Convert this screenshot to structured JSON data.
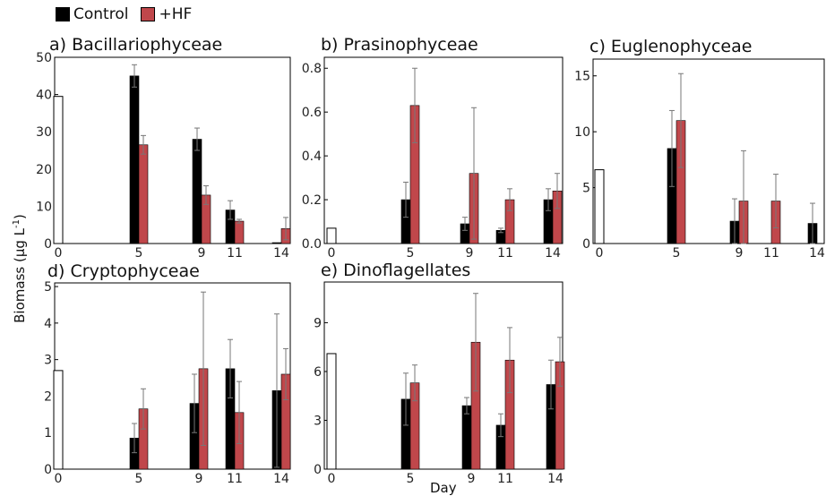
{
  "legend": [
    {
      "label": "Control",
      "color": "#000000"
    },
    {
      "label": "+HF",
      "color": "#c0474b"
    }
  ],
  "ylabel_text": "Biomass (µg L",
  "ylabel_sup": "-1",
  "ylabel_close": ")",
  "xlabel": "Day",
  "chart_data": [
    {
      "type": "bar",
      "title": "a) Bacillariophyceae",
      "categories": [
        "0",
        "5",
        "9",
        "11",
        "14"
      ],
      "ylim": [
        0,
        50
      ],
      "yticks": [
        0,
        10,
        20,
        30,
        40,
        50
      ],
      "initial": {
        "value": 39.5,
        "error": null
      },
      "series": [
        {
          "name": "Control",
          "values": [
            null,
            45,
            28,
            9,
            0
          ],
          "errors": [
            null,
            3,
            3,
            2.5,
            0
          ]
        },
        {
          "name": "+HF",
          "values": [
            null,
            26.5,
            13,
            6,
            4
          ],
          "errors": [
            null,
            2.5,
            2.5,
            0.5,
            3
          ]
        }
      ]
    },
    {
      "type": "bar",
      "title": "b) Prasinophyceae",
      "categories": [
        "0",
        "5",
        "9",
        "11",
        "14"
      ],
      "ylim": [
        0,
        0.85
      ],
      "yticks": [
        0,
        0.2,
        0.4,
        0.6,
        0.8
      ],
      "ytick_labels": [
        "0.0",
        "0.2",
        "0.4",
        "0.6",
        "0.8"
      ],
      "initial": {
        "value": 0.07,
        "error": null
      },
      "series": [
        {
          "name": "Control",
          "values": [
            null,
            0.2,
            0.09,
            0.06,
            0.2
          ],
          "errors": [
            null,
            0.08,
            0.03,
            0.01,
            0.05
          ]
        },
        {
          "name": "+HF",
          "values": [
            null,
            0.63,
            0.32,
            0.2,
            0.24
          ],
          "errors": [
            null,
            0.17,
            0.3,
            0.05,
            0.08
          ]
        }
      ]
    },
    {
      "type": "bar",
      "title": "c) Euglenophyceae",
      "categories": [
        "0",
        "5",
        "9",
        "11",
        "14"
      ],
      "ylim": [
        0,
        16.5
      ],
      "yticks": [
        0,
        5,
        10,
        15
      ],
      "initial": {
        "value": 6.6,
        "error": null
      },
      "series": [
        {
          "name": "Control",
          "values": [
            null,
            8.5,
            2,
            null,
            1.8
          ],
          "errors": [
            null,
            3.4,
            2,
            null,
            1.8
          ]
        },
        {
          "name": "+HF",
          "values": [
            null,
            11,
            3.8,
            3.8,
            null
          ],
          "errors": [
            null,
            4.2,
            4.5,
            2.4,
            null
          ]
        }
      ]
    },
    {
      "type": "bar",
      "title": "d) Cryptophyceae",
      "categories": [
        "0",
        "5",
        "9",
        "11",
        "14"
      ],
      "ylim": [
        0,
        5.1
      ],
      "yticks": [
        0,
        1,
        2,
        3,
        4,
        5
      ],
      "initial": {
        "value": 2.7,
        "error": null
      },
      "series": [
        {
          "name": "Control",
          "values": [
            null,
            0.85,
            1.8,
            2.75,
            2.15
          ],
          "errors": [
            null,
            0.4,
            0.8,
            0.8,
            2.1
          ]
        },
        {
          "name": "+HF",
          "values": [
            null,
            1.65,
            2.75,
            1.55,
            2.6
          ],
          "errors": [
            null,
            0.55,
            2.1,
            0.85,
            0.7
          ]
        }
      ]
    },
    {
      "type": "bar",
      "title": "e) Dinoflagellates",
      "categories": [
        "0",
        "5",
        "9",
        "11",
        "14"
      ],
      "ylim": [
        0,
        11.5
      ],
      "yticks": [
        0,
        3,
        6,
        9
      ],
      "initial": {
        "value": 7.1,
        "error": null
      },
      "series": [
        {
          "name": "Control",
          "values": [
            null,
            4.3,
            3.9,
            2.7,
            5.2
          ],
          "errors": [
            null,
            1.6,
            0.5,
            0.7,
            1.5
          ]
        },
        {
          "name": "+HF",
          "values": [
            null,
            5.3,
            7.8,
            6.7,
            6.6
          ],
          "errors": [
            null,
            1.1,
            3,
            2,
            1.5
          ]
        }
      ]
    }
  ]
}
